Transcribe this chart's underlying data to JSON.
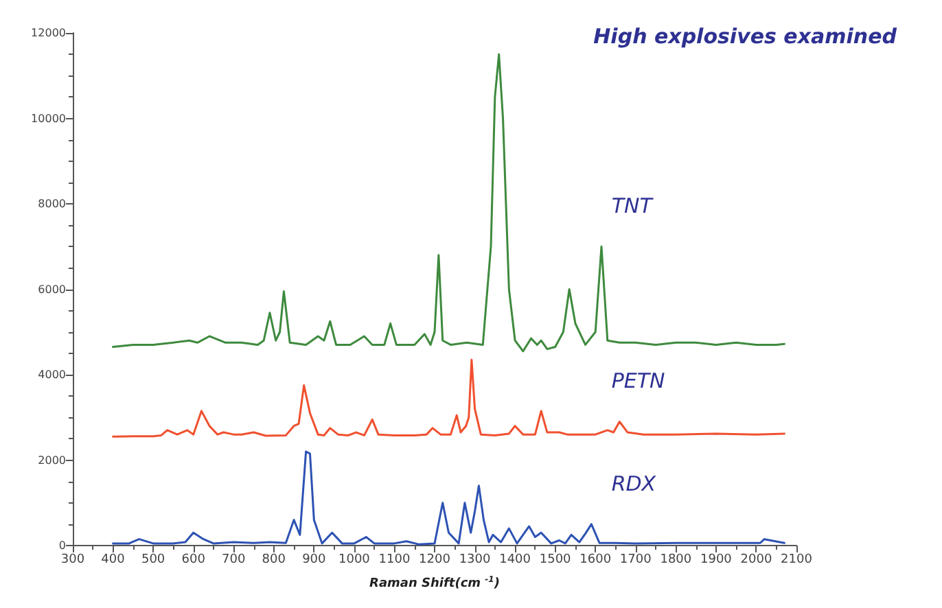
{
  "chart_data": {
    "type": "line",
    "title": "High explosives examined",
    "xlabel": "Raman Shift(cm $^{-1}$)",
    "xlim": [
      300,
      2100
    ],
    "xticks": [
      300,
      400,
      500,
      600,
      700,
      800,
      900,
      1000,
      1100,
      1200,
      1300,
      1400,
      1500,
      1600,
      1700,
      1800,
      1900,
      2000,
      2100
    ],
    "ylim": [
      0,
      12000
    ],
    "yticks": [
      0,
      2000,
      4000,
      6000,
      8000,
      10000,
      12000
    ],
    "grid": false,
    "legend": false,
    "marker": "none",
    "line_style": "solid",
    "series": [
      {
        "name": "TNT",
        "color": "#3e8a3e",
        "x": [
          400,
          450,
          500,
          550,
          590,
          610,
          640,
          680,
          720,
          760,
          775,
          790,
          805,
          815,
          825,
          840,
          880,
          910,
          925,
          940,
          955,
          990,
          1025,
          1045,
          1075,
          1090,
          1105,
          1150,
          1175,
          1190,
          1200,
          1210,
          1220,
          1240,
          1280,
          1320,
          1340,
          1350,
          1360,
          1370,
          1385,
          1400,
          1420,
          1440,
          1455,
          1465,
          1480,
          1500,
          1520,
          1535,
          1550,
          1575,
          1600,
          1615,
          1630,
          1660,
          1700,
          1750,
          1800,
          1850,
          1900,
          1950,
          2000,
          2050,
          2070
        ],
        "values": [
          4650,
          4700,
          4700,
          4750,
          4800,
          4750,
          4900,
          4750,
          4750,
          4700,
          4800,
          5450,
          4800,
          5000,
          5950,
          4750,
          4700,
          4900,
          4800,
          5250,
          4700,
          4700,
          4900,
          4700,
          4700,
          5200,
          4700,
          4700,
          4950,
          4700,
          5000,
          6800,
          4800,
          4700,
          4750,
          4700,
          7000,
          10500,
          11500,
          10000,
          6000,
          4800,
          4550,
          4850,
          4700,
          4800,
          4600,
          4650,
          5000,
          6000,
          5200,
          4700,
          5000,
          7000,
          4800,
          4750,
          4750,
          4700,
          4750,
          4750,
          4700,
          4750,
          4700,
          4700,
          4720
        ]
      },
      {
        "name": "PETN",
        "color": "#f0502f",
        "x": [
          400,
          450,
          500,
          520,
          535,
          560,
          585,
          600,
          620,
          640,
          660,
          675,
          700,
          720,
          750,
          780,
          830,
          850,
          862,
          875,
          890,
          910,
          925,
          940,
          960,
          985,
          1005,
          1025,
          1045,
          1060,
          1100,
          1150,
          1180,
          1195,
          1215,
          1240,
          1255,
          1265,
          1278,
          1285,
          1292,
          1300,
          1315,
          1350,
          1385,
          1400,
          1420,
          1450,
          1465,
          1480,
          1510,
          1530,
          1600,
          1630,
          1645,
          1660,
          1680,
          1720,
          1800,
          1900,
          2000,
          2070
        ],
        "values": [
          2550,
          2560,
          2560,
          2580,
          2700,
          2600,
          2700,
          2600,
          3150,
          2800,
          2600,
          2650,
          2600,
          2600,
          2650,
          2570,
          2580,
          2800,
          2850,
          3750,
          3100,
          2600,
          2580,
          2750,
          2600,
          2580,
          2650,
          2580,
          2950,
          2600,
          2580,
          2580,
          2600,
          2750,
          2600,
          2600,
          3050,
          2650,
          2800,
          3000,
          4350,
          3200,
          2600,
          2580,
          2620,
          2800,
          2600,
          2600,
          3150,
          2650,
          2650,
          2600,
          2600,
          2700,
          2650,
          2900,
          2650,
          2600,
          2600,
          2620,
          2600,
          2620
        ]
      },
      {
        "name": "RDX",
        "color": "#2d52b3",
        "x": [
          400,
          440,
          465,
          500,
          550,
          580,
          600,
          625,
          650,
          700,
          750,
          790,
          830,
          850,
          865,
          880,
          890,
          900,
          920,
          945,
          970,
          1000,
          1030,
          1050,
          1100,
          1130,
          1160,
          1200,
          1220,
          1235,
          1260,
          1275,
          1290,
          1300,
          1310,
          1322,
          1335,
          1345,
          1365,
          1385,
          1405,
          1420,
          1435,
          1450,
          1465,
          1490,
          1510,
          1525,
          1540,
          1560,
          1575,
          1590,
          1610,
          1650,
          1700,
          1800,
          1900,
          2010,
          2020,
          2070
        ],
        "values": [
          50,
          50,
          150,
          50,
          50,
          80,
          300,
          150,
          50,
          80,
          60,
          80,
          60,
          600,
          250,
          2200,
          2150,
          600,
          50,
          300,
          50,
          50,
          200,
          50,
          50,
          100,
          30,
          50,
          1000,
          300,
          50,
          1000,
          300,
          800,
          1400,
          600,
          80,
          250,
          80,
          400,
          50,
          250,
          450,
          200,
          300,
          50,
          120,
          50,
          250,
          80,
          280,
          500,
          60,
          60,
          50,
          60,
          60,
          60,
          150,
          60
        ]
      }
    ]
  }
}
